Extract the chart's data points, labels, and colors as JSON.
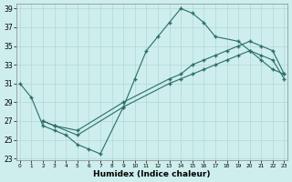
{
  "xlabel": "Humidex (Indice chaleur)",
  "line_color": "#2a6e64",
  "bg_color": "#cdeeed",
  "grid_color": "#b2d8d4",
  "xlim": [
    -0.3,
    23.3
  ],
  "ylim": [
    22.8,
    39.5
  ],
  "yticks": [
    23,
    25,
    27,
    29,
    31,
    33,
    35,
    37,
    39
  ],
  "xticks": [
    0,
    1,
    2,
    3,
    4,
    5,
    6,
    7,
    8,
    9,
    10,
    11,
    12,
    13,
    14,
    15,
    16,
    17,
    18,
    19,
    20,
    21,
    22,
    23
  ],
  "series": [
    {
      "x": [
        0,
        1,
        2,
        3,
        4,
        5,
        6,
        7,
        9,
        10,
        11,
        12,
        13,
        14,
        15,
        16,
        17,
        19,
        20,
        21,
        22,
        23
      ],
      "y": [
        31,
        29.5,
        26.5,
        26,
        25.5,
        24.5,
        24,
        23.5,
        28.5,
        31.5,
        34.5,
        36,
        37.5,
        39,
        38.5,
        37.5,
        36,
        35.5,
        34.5,
        33.5,
        32.5,
        32
      ]
    },
    {
      "x": [
        2,
        3,
        5,
        9,
        13,
        14,
        15,
        16,
        17,
        18,
        19,
        20,
        21,
        22,
        23
      ],
      "y": [
        27,
        26.5,
        26,
        29,
        31.5,
        32,
        33,
        33.5,
        34,
        34.5,
        35,
        35.5,
        35,
        34.5,
        32
      ]
    },
    {
      "x": [
        2,
        3,
        5,
        9,
        13,
        14,
        15,
        16,
        17,
        18,
        19,
        20,
        21,
        22,
        23
      ],
      "y": [
        27,
        26.5,
        25.5,
        28.5,
        31,
        31.5,
        32,
        32.5,
        33,
        33.5,
        34,
        34.5,
        34,
        33.5,
        31.5
      ]
    }
  ]
}
